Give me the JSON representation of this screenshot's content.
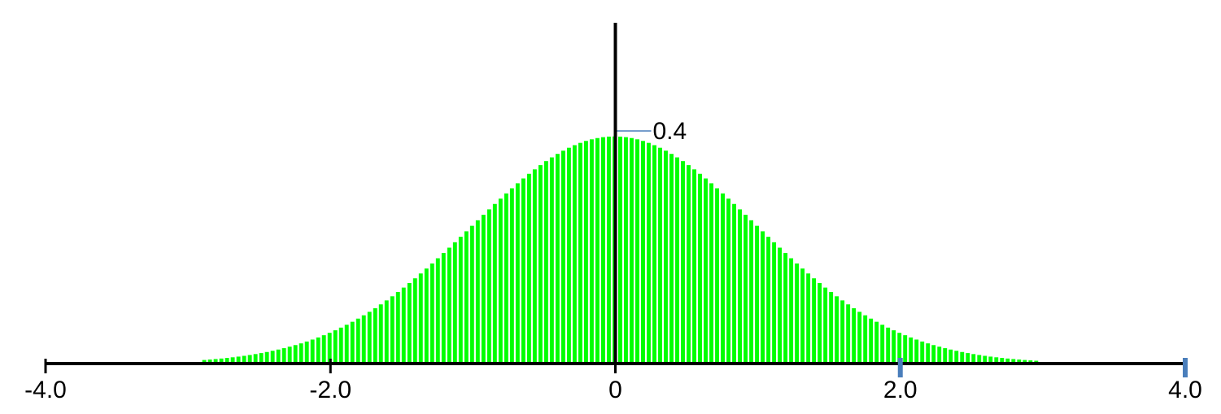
{
  "chart_data": {
    "type": "bar",
    "title": "",
    "xlabel": "",
    "ylabel": "",
    "xlim": [
      -4.0,
      4.0
    ],
    "ylim": [
      0,
      0.4
    ],
    "bar_width": 0.04,
    "x_start": -2.9,
    "x_end": 2.96,
    "bar_color": "#00ff00",
    "axis_color": "#000000",
    "marker_color": "#4a7ebb",
    "x_ticks": [
      {
        "value": -4.0,
        "label": "-4.0"
      },
      {
        "value": -2.0,
        "label": "-2.0"
      },
      {
        "value": 0,
        "label": "0"
      },
      {
        "value": 2.0,
        "label": "2.0"
      },
      {
        "value": 4.0,
        "label": "4.0"
      }
    ],
    "highlight_ticks": [
      2.0,
      4.0
    ],
    "y_annotation": {
      "value": 0.4,
      "label": "0.4"
    },
    "grid": false,
    "legend": "none"
  }
}
